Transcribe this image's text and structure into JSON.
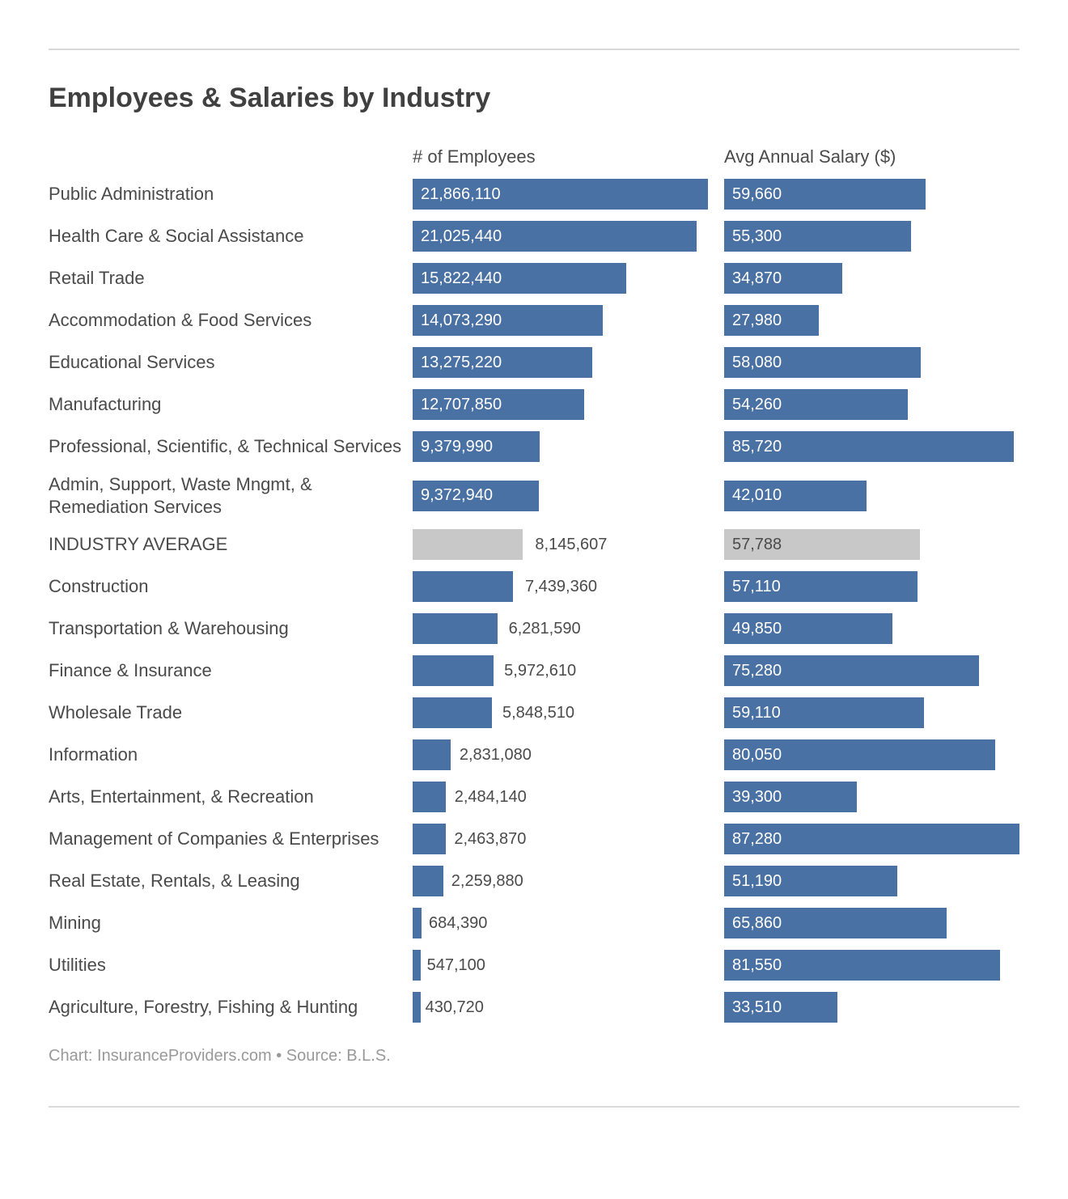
{
  "title": "Employees & Salaries by Industry",
  "columns": {
    "employees": "# of Employees",
    "salary": "Avg Annual Salary ($)"
  },
  "bar_color": "#4a71a4",
  "bar_text_color": "#ffffff",
  "highlight_bar_color": "#c8c8c8",
  "highlight_text_color": "#4a4a4a",
  "outside_text_color": "#4a4a4a",
  "employees_max": 21866110,
  "salary_max": 87280,
  "rows": [
    {
      "label": "Public Administration",
      "employees": 21866110,
      "salary": 59660,
      "highlight": false
    },
    {
      "label": "Health Care & Social Assistance",
      "employees": 21025440,
      "salary": 55300,
      "highlight": false
    },
    {
      "label": "Retail Trade",
      "employees": 15822440,
      "salary": 34870,
      "highlight": false
    },
    {
      "label": "Accommodation & Food Services",
      "employees": 14073290,
      "salary": 27980,
      "highlight": false
    },
    {
      "label": "Educational Services",
      "employees": 13275220,
      "salary": 58080,
      "highlight": false
    },
    {
      "label": "Manufacturing",
      "employees": 12707850,
      "salary": 54260,
      "highlight": false
    },
    {
      "label": "Professional, Scientific, & Technical Services",
      "employees": 9379990,
      "salary": 85720,
      "highlight": false
    },
    {
      "label": "Admin, Support, Waste Mngmt, & Remediation Services",
      "employees": 9372940,
      "salary": 42010,
      "highlight": false
    },
    {
      "label": "INDUSTRY AVERAGE",
      "employees": 8145607,
      "salary": 57788,
      "highlight": true
    },
    {
      "label": "Construction",
      "employees": 7439360,
      "salary": 57110,
      "highlight": false
    },
    {
      "label": "Transportation & Warehousing",
      "employees": 6281590,
      "salary": 49850,
      "highlight": false
    },
    {
      "label": "Finance & Insurance",
      "employees": 5972610,
      "salary": 75280,
      "highlight": false
    },
    {
      "label": "Wholesale Trade",
      "employees": 5848510,
      "salary": 59110,
      "highlight": false
    },
    {
      "label": "Information",
      "employees": 2831080,
      "salary": 80050,
      "highlight": false
    },
    {
      "label": "Arts, Entertainment, & Recreation",
      "employees": 2484140,
      "salary": 39300,
      "highlight": false
    },
    {
      "label": "Management of Companies & Enterprises",
      "employees": 2463870,
      "salary": 87280,
      "highlight": false
    },
    {
      "label": "Real Estate, Rentals, & Leasing",
      "employees": 2259880,
      "salary": 51190,
      "highlight": false
    },
    {
      "label": "Mining",
      "employees": 684390,
      "salary": 65860,
      "highlight": false
    },
    {
      "label": "Utilities",
      "employees": 547100,
      "salary": 81550,
      "highlight": false
    },
    {
      "label": "Agriculture, Forestry, Fishing & Hunting",
      "employees": 430720,
      "salary": 33510,
      "highlight": false
    }
  ],
  "footer": "Chart: InsuranceProviders.com • Source: B.L.S.",
  "label_inside_threshold_pct": 40
}
